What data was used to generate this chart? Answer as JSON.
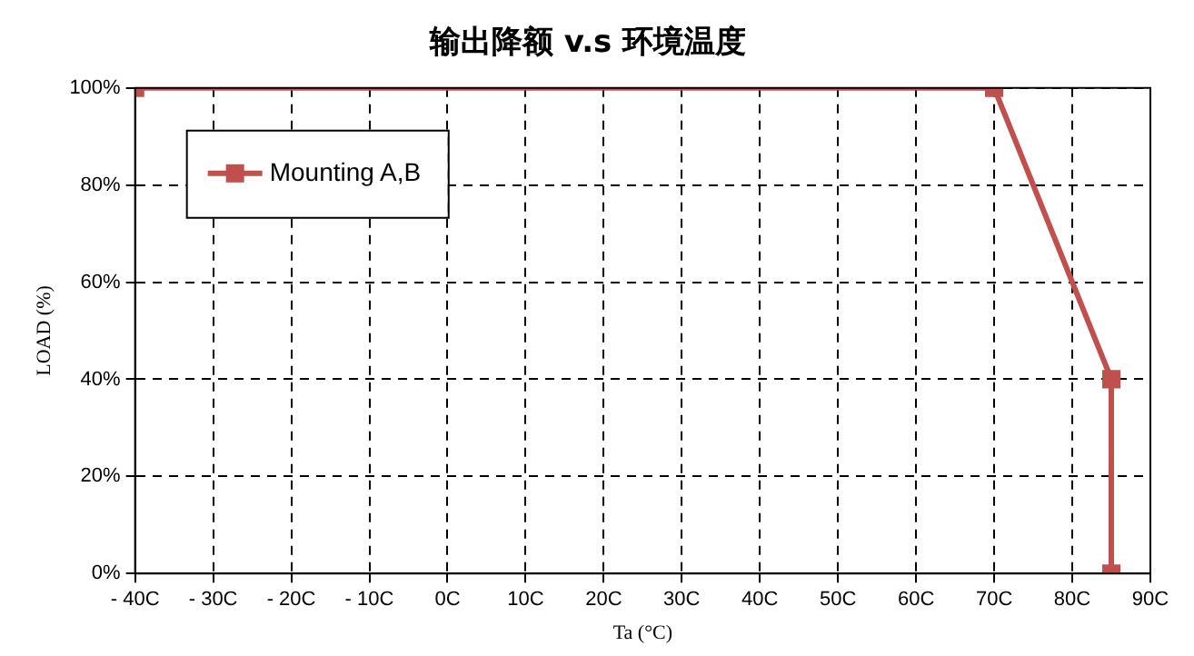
{
  "chart_data": {
    "type": "line",
    "title": "输出降额 v.s 环境温度",
    "xlabel": "Ta (°C)",
    "ylabel": "LOAD (%)",
    "x": [
      -40,
      70,
      85,
      85
    ],
    "series": [
      {
        "name": "Mounting A,B",
        "color": "#c0504d",
        "values": [
          100,
          100,
          40,
          0
        ]
      }
    ],
    "xlim": [
      -40,
      90
    ],
    "xticks": [
      {
        "value": -40,
        "label": "- 40C"
      },
      {
        "value": -30,
        "label": "- 30C"
      },
      {
        "value": -20,
        "label": "- 20C"
      },
      {
        "value": -10,
        "label": "- 10C"
      },
      {
        "value": 0,
        "label": "0C"
      },
      {
        "value": 10,
        "label": "10C"
      },
      {
        "value": 20,
        "label": "20C"
      },
      {
        "value": 30,
        "label": "30C"
      },
      {
        "value": 40,
        "label": "40C"
      },
      {
        "value": 50,
        "label": "50C"
      },
      {
        "value": 60,
        "label": "60C"
      },
      {
        "value": 70,
        "label": "70C"
      },
      {
        "value": 80,
        "label": "80C"
      },
      {
        "value": 90,
        "label": "90C"
      }
    ],
    "ylim": [
      0,
      100
    ],
    "yticks": [
      {
        "value": 0,
        "label": "0%"
      },
      {
        "value": 20,
        "label": "20%"
      },
      {
        "value": 40,
        "label": "40%"
      },
      {
        "value": 60,
        "label": "60%"
      },
      {
        "value": 80,
        "label": "80%"
      },
      {
        "value": 100,
        "label": "100%"
      }
    ],
    "grid": true,
    "legend": "top left",
    "marker": "square",
    "line_style": "solid"
  }
}
